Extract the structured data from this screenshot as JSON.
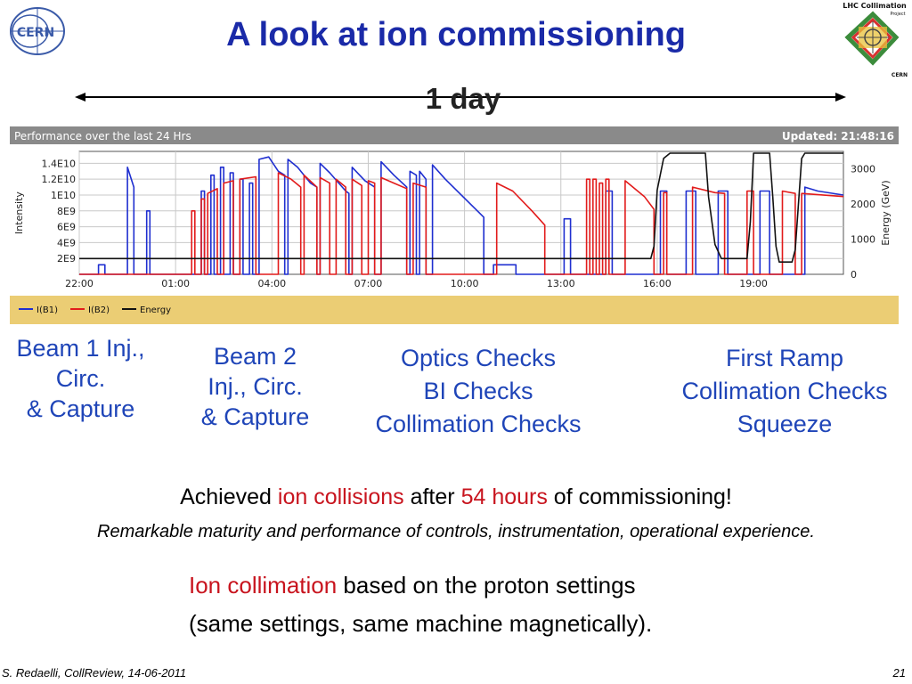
{
  "slide": {
    "title": "A look at ion commissioning",
    "duration_label": "1 day",
    "logos": {
      "cern": "CERN",
      "lhc_title": "LHC Collimation",
      "lhc_subtitle": "Project",
      "lhc_footer": "CERN"
    },
    "phases": [
      {
        "lines": [
          "Beam 1 Inj.,",
          "Circ.",
          "& Capture"
        ]
      },
      {
        "lines": [
          "Beam 2",
          "Inj., Circ.",
          "& Capture"
        ]
      },
      {
        "lines": [
          "Optics Checks",
          "BI Checks",
          "Collimation Checks"
        ]
      },
      {
        "lines": [
          "First Ramp",
          "Collimation Checks",
          "Squeeze"
        ]
      }
    ],
    "achieved": {
      "pre": "Achieved ",
      "hl1": "ion collisions",
      "mid": " after ",
      "hl2": "54 hours",
      "post": " of commissioning!"
    },
    "remark": "Remarkable maturity and performance of controls, instrumentation, operational experience.",
    "collimation": {
      "hl": "Ion collimation",
      "line1_rest": " based on the proton settings",
      "line2": "(same settings, same machine magnetically)."
    },
    "footer_left": "S. Redaelli, CollReview, 14-06-2011",
    "footer_right": "21",
    "colors": {
      "title": "#1a2aa8",
      "phase": "#1f45b8",
      "highlight": "#c8141e"
    }
  },
  "chart_data": {
    "type": "line",
    "header_left": "Performance over the last 24 Hrs",
    "header_right": "Updated: 21:48:16",
    "ylabel_left": "Intensity",
    "ylabel_right": "Energy (GeV)",
    "y_left_ticks": [
      "1.4E10",
      "1.2E10",
      "1E10",
      "8E9",
      "6E9",
      "4E9",
      "2E9"
    ],
    "y_left_values": [
      14,
      12,
      10,
      8,
      6,
      4,
      2
    ],
    "y_right_ticks": [
      "3000",
      "2000",
      "1000",
      "0"
    ],
    "y_right_values": [
      3000,
      2000,
      1000,
      0
    ],
    "x_ticks": [
      "22:00",
      "01:00",
      "04:00",
      "07:00",
      "10:00",
      "13:00",
      "16:00",
      "19:00"
    ],
    "x_tick_hours": [
      0,
      3,
      6,
      9,
      12,
      15,
      18,
      21
    ],
    "xlim_hours": [
      0,
      23.8
    ],
    "ylim_left_e9": [
      0,
      15.5
    ],
    "ylim_right": [
      0,
      3500
    ],
    "grid": true,
    "legend_position": "bottom-left",
    "series": [
      {
        "name": "I(B1)",
        "color": "#1f2fd0",
        "axis": "left",
        "points": [
          [
            0,
            0
          ],
          [
            0.6,
            0
          ],
          [
            0.6,
            1.2
          ],
          [
            0.8,
            1.2
          ],
          [
            0.8,
            0
          ],
          [
            1.5,
            0
          ],
          [
            1.5,
            13.5
          ],
          [
            1.7,
            11
          ],
          [
            1.7,
            0
          ],
          [
            2.1,
            0
          ],
          [
            2.1,
            8
          ],
          [
            2.2,
            8
          ],
          [
            2.2,
            0
          ],
          [
            3.8,
            0
          ],
          [
            3.8,
            10.5
          ],
          [
            3.9,
            10.5
          ],
          [
            3.9,
            0
          ],
          [
            4.1,
            0
          ],
          [
            4.1,
            12.5
          ],
          [
            4.2,
            12.5
          ],
          [
            4.2,
            0
          ],
          [
            4.4,
            0
          ],
          [
            4.4,
            13.5
          ],
          [
            4.5,
            13.5
          ],
          [
            4.5,
            0
          ],
          [
            4.7,
            0
          ],
          [
            4.7,
            12.8
          ],
          [
            4.8,
            12.8
          ],
          [
            4.8,
            0
          ],
          [
            5.0,
            0
          ],
          [
            5.0,
            12
          ],
          [
            5.1,
            12
          ],
          [
            5.1,
            0
          ],
          [
            5.3,
            0
          ],
          [
            5.3,
            11.5
          ],
          [
            5.4,
            11.5
          ],
          [
            5.4,
            0
          ],
          [
            5.6,
            0
          ],
          [
            5.6,
            14.5
          ],
          [
            5.9,
            14.8
          ],
          [
            6.2,
            13
          ],
          [
            6.4,
            12.5
          ],
          [
            6.4,
            0
          ],
          [
            6.5,
            0
          ],
          [
            6.5,
            14.5
          ],
          [
            6.8,
            13.5
          ],
          [
            7.2,
            11.5
          ],
          [
            7.4,
            11
          ],
          [
            7.4,
            0
          ],
          [
            7.5,
            0
          ],
          [
            7.5,
            14
          ],
          [
            7.8,
            12.8
          ],
          [
            8.3,
            10.5
          ],
          [
            8.4,
            10.2
          ],
          [
            8.4,
            0
          ],
          [
            8.5,
            0
          ],
          [
            8.5,
            13.5
          ],
          [
            8.9,
            11.8
          ],
          [
            9.2,
            11
          ],
          [
            9.2,
            0
          ],
          [
            9.4,
            0
          ],
          [
            9.4,
            14.2
          ],
          [
            9.8,
            12.5
          ],
          [
            10.2,
            11
          ],
          [
            10.2,
            0
          ],
          [
            10.3,
            0
          ],
          [
            10.3,
            13
          ],
          [
            10.5,
            12.5
          ],
          [
            10.5,
            0
          ],
          [
            10.6,
            0
          ],
          [
            10.6,
            13
          ],
          [
            10.8,
            12
          ],
          [
            10.8,
            0
          ],
          [
            11.0,
            0
          ],
          [
            11.0,
            13.8
          ],
          [
            11.4,
            12
          ],
          [
            12.2,
            8.8
          ],
          [
            12.6,
            7.2
          ],
          [
            12.6,
            0
          ],
          [
            12.9,
            0
          ],
          [
            12.9,
            1.2
          ],
          [
            13.6,
            1.2
          ],
          [
            13.6,
            0
          ],
          [
            15.1,
            0
          ],
          [
            15.1,
            7
          ],
          [
            15.3,
            7
          ],
          [
            15.3,
            0
          ],
          [
            16.4,
            0
          ],
          [
            16.4,
            10.5
          ],
          [
            16.6,
            10.5
          ],
          [
            16.6,
            0
          ],
          [
            18.1,
            0
          ],
          [
            18.1,
            10.5
          ],
          [
            18.3,
            10.5
          ],
          [
            18.3,
            0
          ],
          [
            18.9,
            0
          ],
          [
            18.9,
            10.5
          ],
          [
            19.2,
            10.5
          ],
          [
            19.2,
            0
          ],
          [
            19.9,
            0
          ],
          [
            19.9,
            10.5
          ],
          [
            20.2,
            10.5
          ],
          [
            20.2,
            0
          ],
          [
            21.2,
            0
          ],
          [
            21.2,
            10.5
          ],
          [
            21.5,
            10.5
          ],
          [
            21.5,
            0
          ],
          [
            22.6,
            0
          ],
          [
            22.6,
            11
          ],
          [
            23.0,
            10.5
          ],
          [
            23.8,
            10
          ]
        ]
      },
      {
        "name": "I(B2)",
        "color": "#e21b1b",
        "axis": "left",
        "points": [
          [
            0,
            0
          ],
          [
            3.5,
            0
          ],
          [
            3.5,
            8
          ],
          [
            3.6,
            8
          ],
          [
            3.6,
            0
          ],
          [
            3.8,
            0
          ],
          [
            3.8,
            9.5
          ],
          [
            3.9,
            9.5
          ],
          [
            3.9,
            0
          ],
          [
            4.0,
            0
          ],
          [
            4.0,
            10.2
          ],
          [
            4.3,
            10.8
          ],
          [
            4.3,
            0
          ],
          [
            4.5,
            0
          ],
          [
            4.5,
            11.5
          ],
          [
            4.8,
            11.8
          ],
          [
            4.8,
            0
          ],
          [
            5.0,
            0
          ],
          [
            5.0,
            12
          ],
          [
            5.5,
            12.3
          ],
          [
            5.5,
            0
          ],
          [
            6.2,
            0
          ],
          [
            6.2,
            12.8
          ],
          [
            6.6,
            12
          ],
          [
            6.9,
            11
          ],
          [
            6.9,
            0
          ],
          [
            7.0,
            0
          ],
          [
            7.0,
            12.5
          ],
          [
            7.4,
            11
          ],
          [
            7.4,
            0
          ],
          [
            7.5,
            0
          ],
          [
            7.5,
            12.2
          ],
          [
            7.8,
            11.5
          ],
          [
            7.8,
            0
          ],
          [
            8.0,
            0
          ],
          [
            8.0,
            12
          ],
          [
            8.3,
            11
          ],
          [
            8.3,
            0
          ],
          [
            8.5,
            0
          ],
          [
            8.5,
            12
          ],
          [
            8.8,
            11.2
          ],
          [
            8.8,
            0
          ],
          [
            9.0,
            0
          ],
          [
            9.0,
            11.8
          ],
          [
            9.2,
            11.5
          ],
          [
            9.2,
            0
          ],
          [
            9.4,
            0
          ],
          [
            9.4,
            12.2
          ],
          [
            9.8,
            11.5
          ],
          [
            10.2,
            10.8
          ],
          [
            10.2,
            0
          ],
          [
            10.4,
            0
          ],
          [
            10.4,
            11.5
          ],
          [
            10.8,
            11
          ],
          [
            10.8,
            0
          ],
          [
            13.0,
            0
          ],
          [
            13.0,
            11.5
          ],
          [
            13.5,
            10.5
          ],
          [
            14.1,
            8
          ],
          [
            14.5,
            6.2
          ],
          [
            14.5,
            0
          ],
          [
            15.8,
            0
          ],
          [
            15.8,
            12
          ],
          [
            15.9,
            12
          ],
          [
            15.9,
            0
          ],
          [
            16.0,
            0
          ],
          [
            16.0,
            12
          ],
          [
            16.1,
            12
          ],
          [
            16.1,
            0
          ],
          [
            16.2,
            0
          ],
          [
            16.2,
            11.5
          ],
          [
            16.3,
            11.5
          ],
          [
            16.3,
            0
          ],
          [
            16.4,
            0
          ],
          [
            16.4,
            12
          ],
          [
            16.5,
            12
          ],
          [
            16.5,
            0
          ],
          [
            17.0,
            0
          ],
          [
            17.0,
            11.8
          ],
          [
            17.6,
            9.8
          ],
          [
            17.9,
            8.2
          ],
          [
            17.9,
            0
          ],
          [
            18.2,
            0
          ],
          [
            18.2,
            10.3
          ],
          [
            18.3,
            10.3
          ],
          [
            18.3,
            0
          ],
          [
            19.1,
            0
          ],
          [
            19.1,
            11
          ],
          [
            19.8,
            10.3
          ],
          [
            20.1,
            10.2
          ],
          [
            20.1,
            0
          ],
          [
            20.8,
            0
          ],
          [
            20.8,
            10.5
          ],
          [
            21.0,
            10.5
          ],
          [
            21.0,
            0
          ],
          [
            21.9,
            0
          ],
          [
            21.9,
            10.5
          ],
          [
            22.3,
            10.2
          ],
          [
            22.3,
            0
          ],
          [
            22.5,
            0
          ],
          [
            22.5,
            10.2
          ],
          [
            23.8,
            9.8
          ]
        ]
      },
      {
        "name": "Energy",
        "color": "#111111",
        "axis": "right",
        "points": [
          [
            0,
            450
          ],
          [
            17.6,
            450
          ],
          [
            17.8,
            450
          ],
          [
            17.9,
            800
          ],
          [
            18.0,
            2400
          ],
          [
            18.2,
            3300
          ],
          [
            18.4,
            3450
          ],
          [
            18.6,
            3450
          ],
          [
            19.3,
            3450
          ],
          [
            19.5,
            3450
          ],
          [
            19.6,
            2200
          ],
          [
            19.8,
            850
          ],
          [
            20.0,
            450
          ],
          [
            20.8,
            450
          ],
          [
            20.9,
            1500
          ],
          [
            21.0,
            3450
          ],
          [
            21.5,
            3450
          ],
          [
            21.6,
            2200
          ],
          [
            21.7,
            800
          ],
          [
            21.8,
            350
          ],
          [
            22.2,
            350
          ],
          [
            22.3,
            700
          ],
          [
            22.5,
            3300
          ],
          [
            22.6,
            3450
          ],
          [
            23.8,
            3450
          ]
        ]
      }
    ]
  }
}
